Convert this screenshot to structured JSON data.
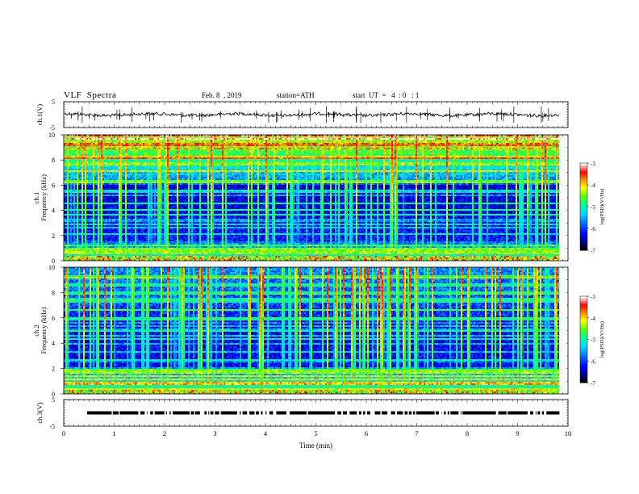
{
  "header": {
    "title": "VLF  Spectra",
    "date": "Feb. 8  , 2019",
    "station": "station=ATH",
    "start": "start  UT  =   4  : 0   : 1"
  },
  "chart_data": [
    {
      "type": "line",
      "panel": "ch1-waveform",
      "ylabel": "ch.1(V)",
      "ylim": [
        -5,
        5
      ],
      "ytick_labels": [
        "5",
        "-5"
      ],
      "xlim": [
        0,
        10
      ],
      "data_range_x": [
        0,
        9.83
      ],
      "trace_level_V": 0
    },
    {
      "type": "heatmap",
      "panel": "ch1-spectrogram",
      "ylabel": "ch.1\nFrequency (kHz)",
      "ylabel_line1": "ch.1",
      "ylabel_line2": "Frequency (kHz)",
      "ylim": [
        0,
        10
      ],
      "ytick_labels": [
        "0",
        "2",
        "4",
        "6",
        "8",
        "10"
      ],
      "xlim": [
        0,
        10
      ],
      "data_range_x": [
        0,
        9.83
      ],
      "colorbar": {
        "label": "log(PSD)(V²/Hz)",
        "range": [
          -7,
          -3
        ],
        "tick_labels": [
          "-3",
          "-4",
          "-5",
          "-6",
          "-7"
        ],
        "colors": [
          "#000000",
          "#000080",
          "#0000ff",
          "#0080ff",
          "#00ffff",
          "#00ff80",
          "#80ff00",
          "#ffff00",
          "#ff8000",
          "#ff0000",
          "#ff8080",
          "#ffffff"
        ]
      }
    },
    {
      "type": "heatmap",
      "panel": "ch2-spectrogram",
      "ylabel": "ch.2\nFrequency (kHz)",
      "ylabel_line1": "ch.2",
      "ylabel_line2": "Frequency (kHz)",
      "ylim": [
        0,
        10
      ],
      "ytick_labels": [
        "0",
        "2",
        "4",
        "6",
        "8",
        "10"
      ],
      "xlim": [
        0,
        10
      ],
      "data_range_x": [
        0,
        9.83
      ],
      "colorbar": {
        "label": "log(PSD)(V²/Hz)",
        "range": [
          -7,
          -3
        ],
        "tick_labels": [
          "-3",
          "-4",
          "-5",
          "-6",
          "-7"
        ],
        "colors": [
          "#000000",
          "#000080",
          "#0000ff",
          "#0080ff",
          "#00ffff",
          "#00ff80",
          "#80ff00",
          "#ffff00",
          "#ff8000",
          "#ff0000",
          "#ff8080",
          "#ffffff"
        ]
      }
    },
    {
      "type": "line",
      "panel": "ch3-waveform",
      "ylabel": "ch.3(V)",
      "ylim": [
        -5,
        5
      ],
      "ytick_labels": [
        "5",
        "-5"
      ],
      "xlim": [
        0,
        10
      ],
      "data_range_x": [
        0,
        9.83
      ],
      "trace_level_V": 0,
      "xlabel": "Time  (min)",
      "xtick_labels": [
        "0",
        "1",
        "2",
        "3",
        "4",
        "5",
        "6",
        "7",
        "8",
        "9",
        "10"
      ]
    }
  ]
}
